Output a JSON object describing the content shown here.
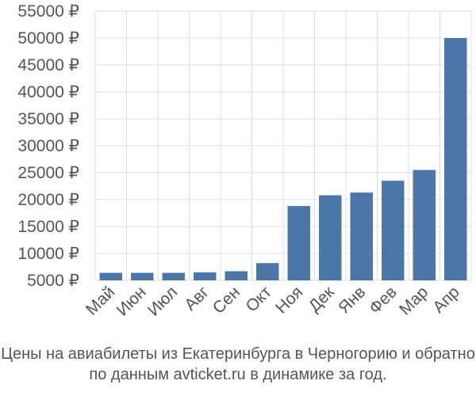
{
  "caption": {
    "line1": "Цены на авиабилеты из Екатеринбурга в Черногорию и обратно",
    "line2": "по данным avticket.ru в динамике за год."
  },
  "chart_data": {
    "type": "bar",
    "title": "",
    "xlabel": "",
    "ylabel": "",
    "currency_symbol": "₽",
    "categories": [
      "Май",
      "Июн",
      "Июл",
      "Авг",
      "Сен",
      "Окт",
      "Ноя",
      "Дек",
      "Янв",
      "Фев",
      "Мар",
      "Апр"
    ],
    "values": [
      6400,
      6400,
      6400,
      6500,
      6700,
      8200,
      18800,
      20800,
      21300,
      23500,
      25500,
      50000
    ],
    "ylim": [
      5000,
      55000
    ],
    "yticks": [
      5000,
      10000,
      15000,
      20000,
      25000,
      30000,
      35000,
      40000,
      45000,
      50000,
      55000
    ],
    "ytick_labels": [
      "5000 ₽",
      "10000 ₽",
      "15000 ₽",
      "20000 ₽",
      "25000 ₽",
      "30000 ₽",
      "35000 ₽",
      "40000 ₽",
      "45000 ₽",
      "50000 ₽",
      "55000 ₽"
    ],
    "grid": true,
    "legend": "none",
    "bar_color": "#4a76a8",
    "grid_color": "#dddddd"
  }
}
